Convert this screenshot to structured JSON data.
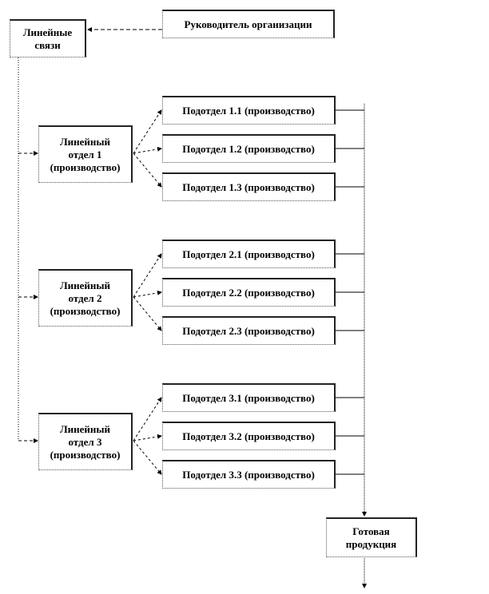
{
  "head": "Руководитель  организации",
  "linear_links": "Линейные\nсвязи",
  "departments": [
    {
      "label": "Линейный\nотдел  1\n(производство)",
      "subdepartments": [
        "Подотдел 1.1 (производство)",
        "Подотдел 1.2 (производство)",
        "Подотдел 1.3 (производство)"
      ]
    },
    {
      "label": "Линейный\nотдел  2\n(производство)",
      "subdepartments": [
        "Подотдел 2.1 (производство)",
        "Подотдел 2.2 (производство)",
        "Подотдел 2.3 (производство)"
      ]
    },
    {
      "label": "Линейный\nотдел  3\n(производство)",
      "subdepartments": [
        "Подотдел 3.1 (производство)",
        "Подотдел 3.2 (производство)",
        "Подотдел 3.3 (производство)"
      ]
    }
  ],
  "output": "Готовая\nпродукция"
}
